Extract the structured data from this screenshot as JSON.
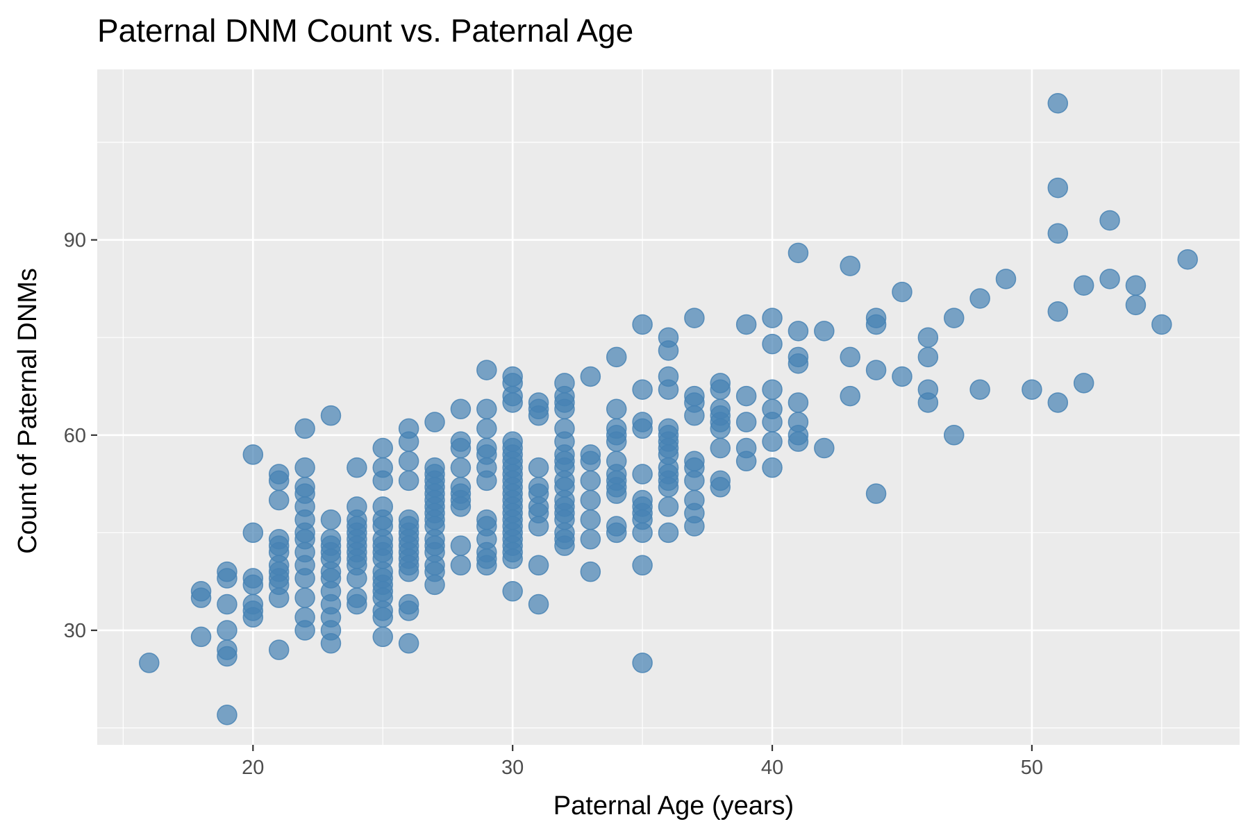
{
  "chart_data": {
    "type": "scatter",
    "title": "Paternal DNM Count vs. Paternal Age",
    "xlabel": "Paternal Age (years)",
    "ylabel": "Count of Paternal DNMs",
    "xlim": [
      14.0,
      58.0
    ],
    "ylim": [
      12.4,
      116.2
    ],
    "x_ticks": [
      20,
      30,
      40,
      50
    ],
    "y_ticks": [
      30,
      60,
      90
    ],
    "x_minor_ticks": [
      15,
      25,
      35,
      45,
      55
    ],
    "y_minor_ticks": [
      15,
      45,
      75,
      105
    ],
    "grid": true,
    "legend": "none",
    "point_color": "#4682b4",
    "panel_background": "#ebebeb",
    "points": [
      [
        16,
        25
      ],
      [
        18,
        29
      ],
      [
        18,
        35
      ],
      [
        18,
        36
      ],
      [
        19,
        17
      ],
      [
        19,
        26
      ],
      [
        19,
        27
      ],
      [
        19,
        30
      ],
      [
        19,
        34
      ],
      [
        19,
        38
      ],
      [
        19,
        39
      ],
      [
        20,
        32
      ],
      [
        20,
        33
      ],
      [
        20,
        34
      ],
      [
        20,
        37
      ],
      [
        20,
        38
      ],
      [
        20,
        45
      ],
      [
        20,
        57
      ],
      [
        21,
        27
      ],
      [
        21,
        35
      ],
      [
        21,
        37
      ],
      [
        21,
        38
      ],
      [
        21,
        39
      ],
      [
        21,
        40
      ],
      [
        21,
        42
      ],
      [
        21,
        43
      ],
      [
        21,
        44
      ],
      [
        21,
        50
      ],
      [
        21,
        53
      ],
      [
        21,
        54
      ],
      [
        22,
        30
      ],
      [
        22,
        32
      ],
      [
        22,
        35
      ],
      [
        22,
        38
      ],
      [
        22,
        40
      ],
      [
        22,
        42
      ],
      [
        22,
        44
      ],
      [
        22,
        45
      ],
      [
        22,
        47
      ],
      [
        22,
        49
      ],
      [
        22,
        51
      ],
      [
        22,
        52
      ],
      [
        22,
        55
      ],
      [
        22,
        61
      ],
      [
        23,
        28
      ],
      [
        23,
        30
      ],
      [
        23,
        32
      ],
      [
        23,
        34
      ],
      [
        23,
        36
      ],
      [
        23,
        38
      ],
      [
        23,
        39
      ],
      [
        23,
        41
      ],
      [
        23,
        42
      ],
      [
        23,
        43
      ],
      [
        23,
        44
      ],
      [
        23,
        47
      ],
      [
        23,
        63
      ],
      [
        24,
        34
      ],
      [
        24,
        35
      ],
      [
        24,
        38
      ],
      [
        24,
        40
      ],
      [
        24,
        41
      ],
      [
        24,
        42
      ],
      [
        24,
        43
      ],
      [
        24,
        44
      ],
      [
        24,
        45
      ],
      [
        24,
        46
      ],
      [
        24,
        47
      ],
      [
        24,
        49
      ],
      [
        24,
        55
      ],
      [
        25,
        29
      ],
      [
        25,
        32
      ],
      [
        25,
        33
      ],
      [
        25,
        35
      ],
      [
        25,
        36
      ],
      [
        25,
        37
      ],
      [
        25,
        38
      ],
      [
        25,
        39
      ],
      [
        25,
        41
      ],
      [
        25,
        42
      ],
      [
        25,
        43
      ],
      [
        25,
        44
      ],
      [
        25,
        46
      ],
      [
        25,
        47
      ],
      [
        25,
        49
      ],
      [
        25,
        53
      ],
      [
        25,
        55
      ],
      [
        25,
        58
      ],
      [
        26,
        28
      ],
      [
        26,
        33
      ],
      [
        26,
        34
      ],
      [
        26,
        39
      ],
      [
        26,
        40
      ],
      [
        26,
        41
      ],
      [
        26,
        42
      ],
      [
        26,
        43
      ],
      [
        26,
        44
      ],
      [
        26,
        45
      ],
      [
        26,
        46
      ],
      [
        26,
        47
      ],
      [
        26,
        53
      ],
      [
        26,
        56
      ],
      [
        26,
        59
      ],
      [
        26,
        61
      ],
      [
        27,
        37
      ],
      [
        27,
        39
      ],
      [
        27,
        40
      ],
      [
        27,
        42
      ],
      [
        27,
        43
      ],
      [
        27,
        44
      ],
      [
        27,
        46
      ],
      [
        27,
        47
      ],
      [
        27,
        48
      ],
      [
        27,
        49
      ],
      [
        27,
        50
      ],
      [
        27,
        51
      ],
      [
        27,
        52
      ],
      [
        27,
        53
      ],
      [
        27,
        54
      ],
      [
        27,
        55
      ],
      [
        27,
        62
      ],
      [
        28,
        40
      ],
      [
        28,
        43
      ],
      [
        28,
        49
      ],
      [
        28,
        50
      ],
      [
        28,
        51
      ],
      [
        28,
        52
      ],
      [
        28,
        55
      ],
      [
        28,
        58
      ],
      [
        28,
        59
      ],
      [
        28,
        64
      ],
      [
        29,
        40
      ],
      [
        29,
        41
      ],
      [
        29,
        42
      ],
      [
        29,
        44
      ],
      [
        29,
        46
      ],
      [
        29,
        47
      ],
      [
        29,
        53
      ],
      [
        29,
        55
      ],
      [
        29,
        57
      ],
      [
        29,
        58
      ],
      [
        29,
        61
      ],
      [
        29,
        64
      ],
      [
        29,
        70
      ],
      [
        30,
        36
      ],
      [
        30,
        41
      ],
      [
        30,
        42
      ],
      [
        30,
        43
      ],
      [
        30,
        44
      ],
      [
        30,
        45
      ],
      [
        30,
        46
      ],
      [
        30,
        47
      ],
      [
        30,
        48
      ],
      [
        30,
        49
      ],
      [
        30,
        50
      ],
      [
        30,
        51
      ],
      [
        30,
        52
      ],
      [
        30,
        53
      ],
      [
        30,
        54
      ],
      [
        30,
        55
      ],
      [
        30,
        56
      ],
      [
        30,
        57
      ],
      [
        30,
        58
      ],
      [
        30,
        59
      ],
      [
        30,
        65
      ],
      [
        30,
        66
      ],
      [
        30,
        68
      ],
      [
        30,
        69
      ],
      [
        31,
        34
      ],
      [
        31,
        40
      ],
      [
        31,
        46
      ],
      [
        31,
        48
      ],
      [
        31,
        49
      ],
      [
        31,
        51
      ],
      [
        31,
        52
      ],
      [
        31,
        55
      ],
      [
        31,
        63
      ],
      [
        31,
        64
      ],
      [
        31,
        65
      ],
      [
        32,
        43
      ],
      [
        32,
        44
      ],
      [
        32,
        45
      ],
      [
        32,
        47
      ],
      [
        32,
        48
      ],
      [
        32,
        49
      ],
      [
        32,
        50
      ],
      [
        32,
        52
      ],
      [
        32,
        53
      ],
      [
        32,
        55
      ],
      [
        32,
        56
      ],
      [
        32,
        57
      ],
      [
        32,
        59
      ],
      [
        32,
        61
      ],
      [
        32,
        64
      ],
      [
        32,
        65
      ],
      [
        32,
        66
      ],
      [
        32,
        68
      ],
      [
        33,
        39
      ],
      [
        33,
        44
      ],
      [
        33,
        47
      ],
      [
        33,
        50
      ],
      [
        33,
        53
      ],
      [
        33,
        56
      ],
      [
        33,
        57
      ],
      [
        33,
        69
      ],
      [
        34,
        45
      ],
      [
        34,
        46
      ],
      [
        34,
        51
      ],
      [
        34,
        52
      ],
      [
        34,
        53
      ],
      [
        34,
        54
      ],
      [
        34,
        56
      ],
      [
        34,
        59
      ],
      [
        34,
        60
      ],
      [
        34,
        61
      ],
      [
        34,
        64
      ],
      [
        34,
        72
      ],
      [
        35,
        25
      ],
      [
        35,
        40
      ],
      [
        35,
        45
      ],
      [
        35,
        47
      ],
      [
        35,
        48
      ],
      [
        35,
        49
      ],
      [
        35,
        50
      ],
      [
        35,
        54
      ],
      [
        35,
        61
      ],
      [
        35,
        62
      ],
      [
        35,
        67
      ],
      [
        35,
        77
      ],
      [
        36,
        45
      ],
      [
        36,
        49
      ],
      [
        36,
        52
      ],
      [
        36,
        53
      ],
      [
        36,
        54
      ],
      [
        36,
        55
      ],
      [
        36,
        57
      ],
      [
        36,
        58
      ],
      [
        36,
        59
      ],
      [
        36,
        60
      ],
      [
        36,
        61
      ],
      [
        36,
        67
      ],
      [
        36,
        69
      ],
      [
        36,
        73
      ],
      [
        36,
        75
      ],
      [
        37,
        46
      ],
      [
        37,
        48
      ],
      [
        37,
        50
      ],
      [
        37,
        53
      ],
      [
        37,
        55
      ],
      [
        37,
        56
      ],
      [
        37,
        63
      ],
      [
        37,
        65
      ],
      [
        37,
        66
      ],
      [
        37,
        78
      ],
      [
        38,
        52
      ],
      [
        38,
        53
      ],
      [
        38,
        58
      ],
      [
        38,
        61
      ],
      [
        38,
        62
      ],
      [
        38,
        63
      ],
      [
        38,
        64
      ],
      [
        38,
        67
      ],
      [
        38,
        68
      ],
      [
        39,
        56
      ],
      [
        39,
        58
      ],
      [
        39,
        62
      ],
      [
        39,
        66
      ],
      [
        39,
        77
      ],
      [
        40,
        55
      ],
      [
        40,
        59
      ],
      [
        40,
        62
      ],
      [
        40,
        64
      ],
      [
        40,
        67
      ],
      [
        40,
        74
      ],
      [
        40,
        78
      ],
      [
        41,
        59
      ],
      [
        41,
        60
      ],
      [
        41,
        62
      ],
      [
        41,
        65
      ],
      [
        41,
        71
      ],
      [
        41,
        72
      ],
      [
        41,
        76
      ],
      [
        41,
        88
      ],
      [
        42,
        58
      ],
      [
        42,
        76
      ],
      [
        43,
        66
      ],
      [
        43,
        72
      ],
      [
        43,
        86
      ],
      [
        44,
        51
      ],
      [
        44,
        70
      ],
      [
        44,
        77
      ],
      [
        44,
        78
      ],
      [
        45,
        69
      ],
      [
        45,
        82
      ],
      [
        46,
        65
      ],
      [
        46,
        67
      ],
      [
        46,
        72
      ],
      [
        46,
        75
      ],
      [
        47,
        60
      ],
      [
        47,
        78
      ],
      [
        48,
        67
      ],
      [
        48,
        81
      ],
      [
        49,
        84
      ],
      [
        50,
        67
      ],
      [
        51,
        65
      ],
      [
        51,
        79
      ],
      [
        51,
        91
      ],
      [
        51,
        98
      ],
      [
        51,
        111
      ],
      [
        52,
        68
      ],
      [
        52,
        83
      ],
      [
        53,
        84
      ],
      [
        53,
        93
      ],
      [
        54,
        80
      ],
      [
        54,
        83
      ],
      [
        55,
        77
      ],
      [
        56,
        87
      ]
    ]
  }
}
